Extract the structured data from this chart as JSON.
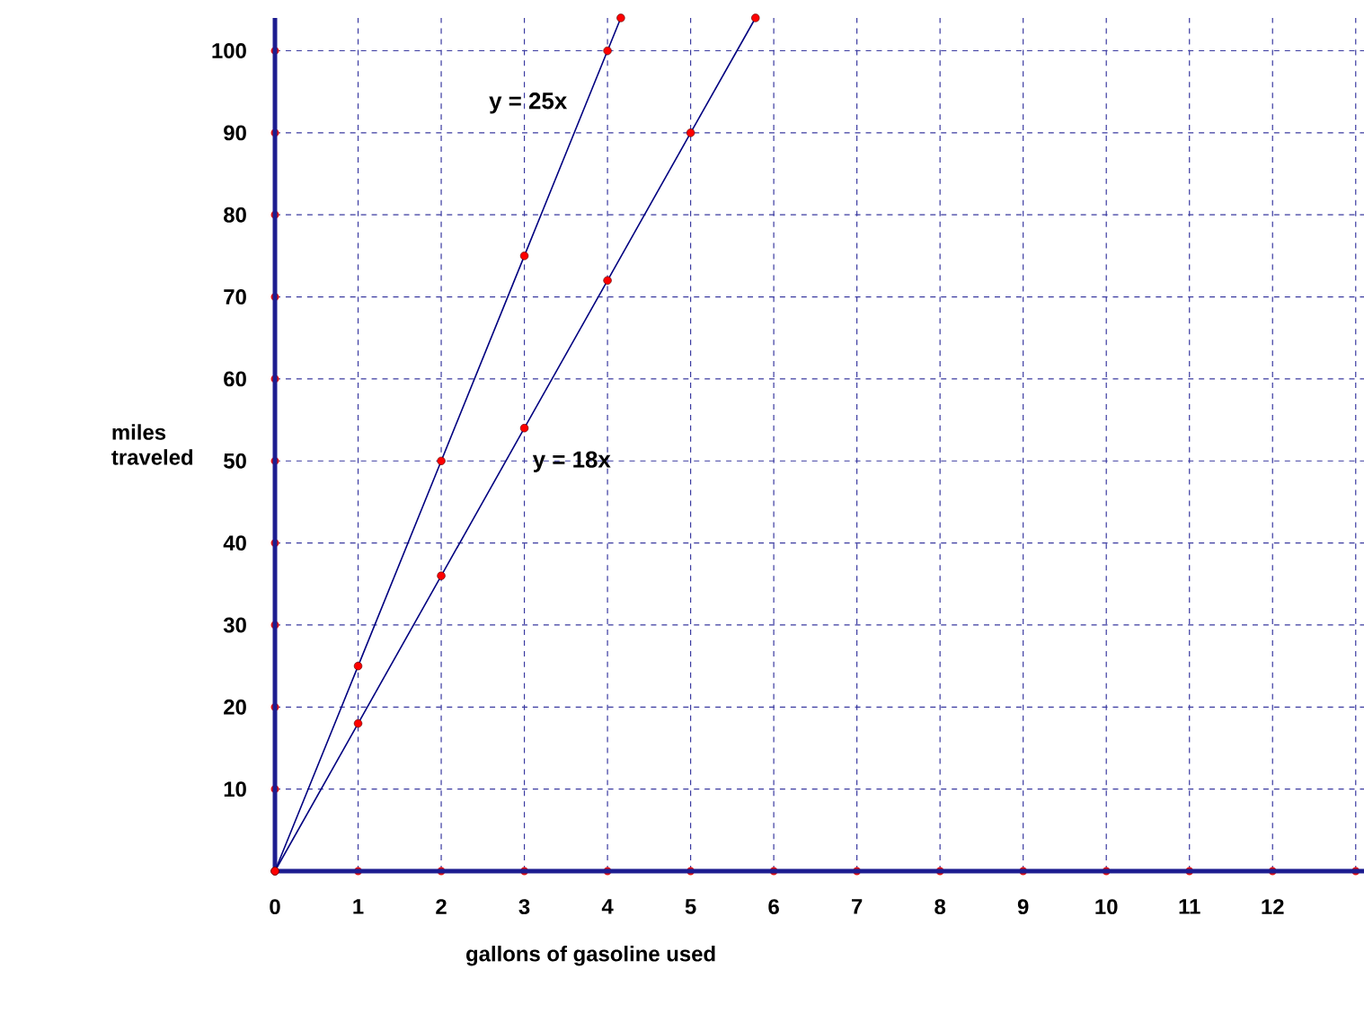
{
  "chart_data": {
    "type": "line",
    "xlabel": "gallons of gasoline used",
    "ylabel": "miles traveled",
    "xlim": [
      0,
      13.1
    ],
    "ylim": [
      0,
      104
    ],
    "xticks": [
      {
        "value": 0,
        "label": "0"
      },
      1,
      2,
      3,
      4,
      5,
      6,
      7,
      8,
      9,
      10,
      11,
      12,
      {
        "value": 13,
        "label": null
      }
    ],
    "yticks": [
      10,
      20,
      30,
      40,
      50,
      60,
      70,
      80,
      90,
      100
    ],
    "grid": true,
    "marker": "circle",
    "series": [
      {
        "name": "y = 25x",
        "color": "#000080",
        "x": [
          0,
          1,
          2,
          3,
          4,
          4.16
        ],
        "values": [
          0,
          25,
          50,
          75,
          100,
          104
        ]
      },
      {
        "name": "y = 18x",
        "color": "#000080",
        "x": [
          0,
          1,
          2,
          3,
          4,
          5,
          5.78
        ],
        "values": [
          0,
          18,
          36,
          54,
          72,
          90,
          104
        ]
      }
    ]
  }
}
